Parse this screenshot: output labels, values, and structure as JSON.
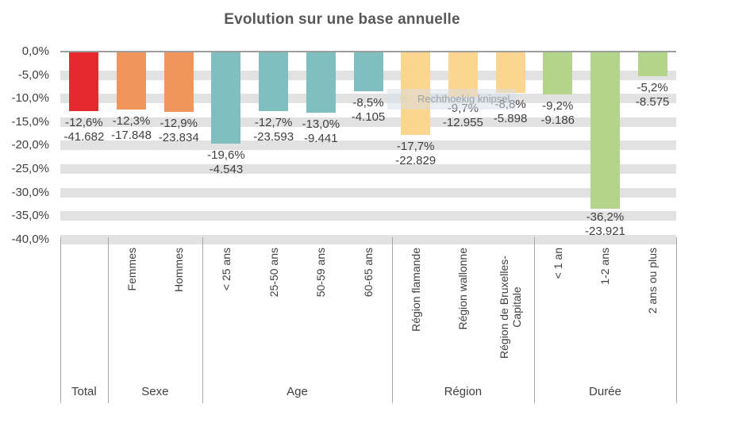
{
  "title": "Evolution sur une base annuelle",
  "watermark": {
    "label": "Rechthoekig knipsel"
  },
  "chart_data": {
    "type": "bar",
    "title": "Evolution sur une base annuelle",
    "orientation": "vertical-negative",
    "value_format": "percent-and-absolute",
    "ylim": [
      -40,
      0
    ],
    "ytick_step": -5,
    "ytick_labels": [
      "0,0%",
      "-5,0%",
      "-10,0%",
      "-15,0%",
      "-20,0%",
      "-25,0%",
      "-30,0%",
      "-35,0%",
      "-40,0%"
    ],
    "grid": "horizontal-bands",
    "legend": "none",
    "colors": {
      "total": "#e7282d",
      "sexe": "#f0965c",
      "age": "#7fbfc0",
      "region": "#fcd58e",
      "duree": "#b3d489",
      "grid_band": "#e2e2e2",
      "axis_line": "#9d9d9d",
      "text": "#404040"
    },
    "groups": [
      {
        "label": "Total",
        "color": "#e7282d",
        "bars": [
          {
            "label": "",
            "pct": -12.6,
            "pct_label": "-12,6%",
            "abs_label": "-41.682"
          }
        ]
      },
      {
        "label": "Sexe",
        "color": "#f0965c",
        "bars": [
          {
            "label": "Femmes",
            "pct": -12.3,
            "pct_label": "-12,3%",
            "abs_label": "-17.848"
          },
          {
            "label": "Hommes",
            "pct": -12.9,
            "pct_label": "-12,9%",
            "abs_label": "-23.834"
          }
        ]
      },
      {
        "label": "Age",
        "color": "#7fbfc0",
        "bars": [
          {
            "label": "< 25 ans",
            "pct": -19.6,
            "pct_label": "-19,6%",
            "abs_label": "-4.543"
          },
          {
            "label": "25-50 ans",
            "pct": -12.7,
            "pct_label": "-12,7%",
            "abs_label": "-23.593"
          },
          {
            "label": "50-59 ans",
            "pct": -13.0,
            "pct_label": "-13,0%",
            "abs_label": "-9.441"
          },
          {
            "label": "60-65 ans",
            "pct": -8.5,
            "pct_label": "-8,5%",
            "abs_label": "-4.105"
          }
        ]
      },
      {
        "label": "Région",
        "color": "#fcd58e",
        "bars": [
          {
            "label": "Région flamande",
            "pct": -17.7,
            "pct_label": "-17,7%",
            "abs_label": "-22.829"
          },
          {
            "label": "Région wallonne",
            "pct": -9.7,
            "pct_label": "-9,7%",
            "abs_label": "-12.955"
          },
          {
            "label": "Région de Bruxelles-\nCapitale",
            "pct": -8.8,
            "pct_label": "-8,8%",
            "abs_label": "-5.898"
          }
        ]
      },
      {
        "label": "Durée",
        "color": "#b3d489",
        "bars": [
          {
            "label": "< 1 an",
            "pct": -9.2,
            "pct_label": "-9,2%",
            "abs_label": "-9.186"
          },
          {
            "label": "1-2 ans",
            "pct": -36.2,
            "pct_label": "-36,2%",
            "abs_label": "-23.921"
          },
          {
            "label": "2 ans ou plus",
            "pct": -5.2,
            "pct_label": "-5,2%",
            "abs_label": "-8.575"
          }
        ]
      }
    ]
  }
}
